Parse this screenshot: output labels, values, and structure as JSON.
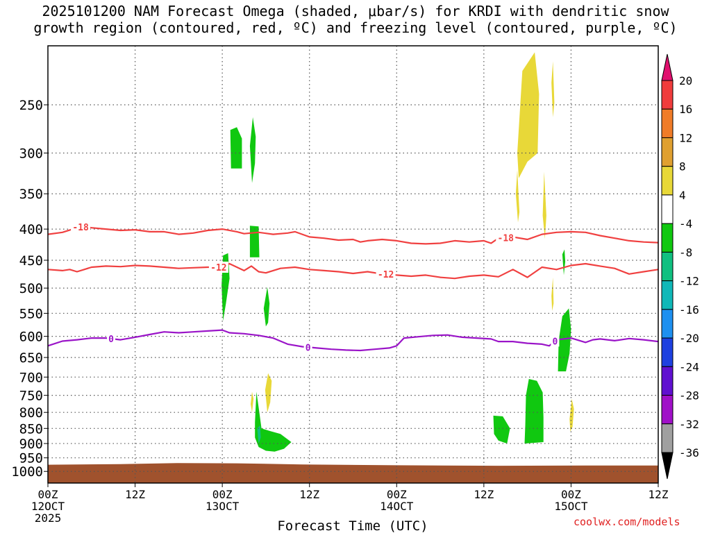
{
  "title_line1": "2025101200 NAM Forecast Omega (shaded, μbar/s) for KRDI with dendritic snow",
  "title_line2": "growth region (contoured, red, ºC) and freezing level (contoured, purple, ºC)",
  "credit": "coolwx.com/models",
  "chart_data": {
    "type": "time-height",
    "xlabel": "Forecast Time (UTC)",
    "x_range_hours": [
      0,
      84
    ],
    "y_scale": "log-pressure",
    "y_range_hPa": [
      200,
      1045
    ],
    "y_ticks": [
      250,
      300,
      350,
      400,
      450,
      500,
      550,
      600,
      650,
      700,
      750,
      800,
      850,
      900,
      950,
      1000
    ],
    "x_ticks": [
      {
        "h": 0,
        "lines": [
          "00Z",
          "12OCT",
          "2025"
        ]
      },
      {
        "h": 12,
        "lines": [
          "12Z"
        ]
      },
      {
        "h": 24,
        "lines": [
          "00Z",
          "13OCT"
        ]
      },
      {
        "h": 36,
        "lines": [
          "12Z"
        ]
      },
      {
        "h": 48,
        "lines": [
          "00Z",
          "14OCT"
        ]
      },
      {
        "h": 60,
        "lines": [
          "12Z"
        ]
      },
      {
        "h": 72,
        "lines": [
          "00Z",
          "15OCT"
        ]
      },
      {
        "h": 84,
        "lines": [
          "12Z"
        ]
      }
    ],
    "grid": true,
    "colorbar": {
      "levels": [
        20,
        16,
        12,
        8,
        4,
        -4,
        -8,
        -12,
        -16,
        -20,
        -24,
        -28,
        -32,
        -36
      ],
      "colors": [
        "#f03c3c",
        "#f07c28",
        "#e0a030",
        "#e8d838",
        "#ffffff",
        "#10c810",
        "#10c080",
        "#10b8b8",
        "#1e90f0",
        "#1e40e0",
        "#6010d0",
        "#a010c8",
        "#a0a0a0"
      ],
      "top_color": "#e0106e",
      "bottom_color": "#000000"
    },
    "contours": [
      {
        "level": -18,
        "color": "#f04040",
        "label_text": "-18",
        "label_at_h": [
          4.5,
          63
        ],
        "points": [
          [
            0,
            408
          ],
          [
            2,
            405
          ],
          [
            4,
            398
          ],
          [
            5,
            396
          ],
          [
            6,
            398
          ],
          [
            8,
            400
          ],
          [
            10,
            402
          ],
          [
            12,
            401
          ],
          [
            14,
            404
          ],
          [
            16,
            404
          ],
          [
            18,
            408
          ],
          [
            20,
            406
          ],
          [
            22,
            402
          ],
          [
            24,
            400
          ],
          [
            26,
            404
          ],
          [
            27,
            407
          ],
          [
            29,
            405
          ],
          [
            31,
            408
          ],
          [
            33,
            406
          ],
          [
            34,
            404
          ],
          [
            36,
            412
          ],
          [
            38,
            414
          ],
          [
            40,
            417
          ],
          [
            42,
            416
          ],
          [
            43,
            420
          ],
          [
            44,
            418
          ],
          [
            46,
            416
          ],
          [
            48,
            418
          ],
          [
            50,
            422
          ],
          [
            52,
            423
          ],
          [
            54,
            422
          ],
          [
            56,
            418
          ],
          [
            58,
            420
          ],
          [
            60,
            418
          ],
          [
            61,
            422
          ],
          [
            62,
            414
          ],
          [
            64,
            412
          ],
          [
            66,
            416
          ],
          [
            68,
            408
          ],
          [
            70,
            405
          ],
          [
            72,
            404
          ],
          [
            74,
            405
          ],
          [
            76,
            410
          ],
          [
            78,
            414
          ],
          [
            80,
            418
          ],
          [
            82,
            420
          ],
          [
            84,
            421
          ]
        ]
      },
      {
        "level": -12,
        "color": "#f04040",
        "label_text": "-12",
        "label_at_h": [
          23.5,
          46.5
        ],
        "points": [
          [
            0,
            466
          ],
          [
            2,
            468
          ],
          [
            3,
            466
          ],
          [
            4,
            470
          ],
          [
            5,
            466
          ],
          [
            6,
            462
          ],
          [
            8,
            460
          ],
          [
            10,
            461
          ],
          [
            12,
            459
          ],
          [
            14,
            460
          ],
          [
            16,
            462
          ],
          [
            18,
            464
          ],
          [
            20,
            463
          ],
          [
            22,
            462
          ],
          [
            24,
            462
          ],
          [
            25,
            456
          ],
          [
            27,
            468
          ],
          [
            28,
            460
          ],
          [
            29,
            470
          ],
          [
            30,
            472
          ],
          [
            32,
            464
          ],
          [
            34,
            462
          ],
          [
            36,
            466
          ],
          [
            38,
            468
          ],
          [
            40,
            470
          ],
          [
            42,
            473
          ],
          [
            44,
            470
          ],
          [
            46,
            474
          ],
          [
            48,
            476
          ],
          [
            50,
            478
          ],
          [
            52,
            476
          ],
          [
            54,
            480
          ],
          [
            56,
            482
          ],
          [
            58,
            478
          ],
          [
            60,
            476
          ],
          [
            62,
            479
          ],
          [
            64,
            466
          ],
          [
            66,
            480
          ],
          [
            68,
            462
          ],
          [
            70,
            466
          ],
          [
            72,
            459
          ],
          [
            74,
            456
          ],
          [
            76,
            460
          ],
          [
            78,
            464
          ],
          [
            80,
            474
          ],
          [
            82,
            470
          ],
          [
            84,
            466
          ]
        ]
      },
      {
        "level": 0,
        "color": "#9a14c8",
        "label_text": "0",
        "label_at_h": [
          8.7,
          35.8,
          69.8
        ],
        "points": [
          [
            0,
            622
          ],
          [
            2,
            611
          ],
          [
            4,
            608
          ],
          [
            6,
            604
          ],
          [
            8,
            604
          ],
          [
            10,
            608
          ],
          [
            12,
            602
          ],
          [
            14,
            596
          ],
          [
            16,
            590
          ],
          [
            18,
            592
          ],
          [
            20,
            590
          ],
          [
            22,
            588
          ],
          [
            24,
            586
          ],
          [
            25,
            592
          ],
          [
            27,
            594
          ],
          [
            29,
            598
          ],
          [
            31,
            604
          ],
          [
            33,
            618
          ],
          [
            35,
            624
          ],
          [
            37,
            627
          ],
          [
            39,
            630
          ],
          [
            41,
            632
          ],
          [
            43,
            633
          ],
          [
            45,
            630
          ],
          [
            47,
            627
          ],
          [
            48,
            622
          ],
          [
            49,
            604
          ],
          [
            51,
            601
          ],
          [
            53,
            598
          ],
          [
            55,
            597
          ],
          [
            57,
            602
          ],
          [
            59,
            604
          ],
          [
            61,
            606
          ],
          [
            62,
            612
          ],
          [
            64,
            612
          ],
          [
            66,
            616
          ],
          [
            68,
            618
          ],
          [
            69,
            622
          ],
          [
            70,
            608
          ],
          [
            72,
            604
          ],
          [
            74,
            614
          ],
          [
            75,
            608
          ],
          [
            76,
            606
          ],
          [
            78,
            610
          ],
          [
            80,
            605
          ],
          [
            82,
            608
          ],
          [
            84,
            612
          ]
        ]
      }
    ],
    "omega_regions": [
      {
        "level": "-8 to -4",
        "color": "#10c810",
        "polygon": [
          [
            25.1,
            275
          ],
          [
            26.0,
            272
          ],
          [
            26.7,
            284
          ],
          [
            26.7,
            318
          ],
          [
            25.2,
            318
          ]
        ]
      },
      {
        "level": "-8 to -4",
        "color": "#10c810",
        "polygon": [
          [
            27.8,
            292
          ],
          [
            28.2,
            262
          ],
          [
            28.6,
            282
          ],
          [
            28.5,
            312
          ],
          [
            28.1,
            336
          ]
        ]
      },
      {
        "level": "-8 to -4",
        "color": "#10c810",
        "polygon": [
          [
            27.8,
            395
          ],
          [
            29.0,
            396
          ],
          [
            29.1,
            445
          ],
          [
            27.8,
            445
          ]
        ]
      },
      {
        "level": "-8 to -4",
        "color": "#10c810",
        "polygon": [
          [
            23.9,
            495
          ],
          [
            24.1,
            442
          ],
          [
            24.8,
            438
          ],
          [
            25.0,
            482
          ],
          [
            24.5,
            530
          ],
          [
            24.1,
            566
          ]
        ]
      },
      {
        "level": "-8 to -4",
        "color": "#10c810",
        "polygon": [
          [
            29.7,
            540
          ],
          [
            30.2,
            498
          ],
          [
            30.5,
            530
          ],
          [
            30.3,
            570
          ],
          [
            30.0,
            578
          ]
        ]
      },
      {
        "level": "-8 to -4",
        "color": "#10c810",
        "polygon": [
          [
            28.5,
            830
          ],
          [
            28.7,
            740
          ],
          [
            29.0,
            785
          ],
          [
            29.4,
            850
          ],
          [
            30.5,
            858
          ],
          [
            32.0,
            868
          ],
          [
            33.5,
            895
          ],
          [
            32.5,
            918
          ],
          [
            31.2,
            928
          ],
          [
            30.0,
            925
          ],
          [
            29.0,
            912
          ],
          [
            28.5,
            880
          ]
        ]
      },
      {
        "level": "-8 to -4",
        "color": "#10c810",
        "polygon": [
          [
            61.3,
            810
          ],
          [
            62.6,
            812
          ],
          [
            63.6,
            850
          ],
          [
            63.2,
            900
          ],
          [
            62.0,
            890
          ],
          [
            61.4,
            868
          ]
        ]
      },
      {
        "level": "-8 to -4",
        "color": "#10c810",
        "polygon": [
          [
            65.8,
            750
          ],
          [
            66.2,
            705
          ],
          [
            67.3,
            710
          ],
          [
            68.1,
            742
          ],
          [
            68.2,
            815
          ],
          [
            68.2,
            895
          ],
          [
            65.6,
            900
          ],
          [
            65.7,
            840
          ]
        ]
      },
      {
        "level": "-8 to -4",
        "color": "#10c810",
        "polygon": [
          [
            70.3,
            610
          ],
          [
            70.8,
            556
          ],
          [
            71.7,
            540
          ],
          [
            72.0,
            585
          ],
          [
            71.8,
            640
          ],
          [
            71.3,
            685
          ],
          [
            70.2,
            685
          ]
        ]
      },
      {
        "level": "-8 to -4",
        "color": "#10c810",
        "polygon": [
          [
            70.8,
            440
          ],
          [
            71.1,
            432
          ],
          [
            71.2,
            452
          ],
          [
            71.0,
            476
          ]
        ]
      },
      {
        "level": "4 to 8",
        "color": "#e8d838",
        "polygon": [
          [
            64.6,
            300
          ],
          [
            65.3,
            220
          ],
          [
            67.0,
            205
          ],
          [
            67.6,
            240
          ],
          [
            67.4,
            300
          ],
          [
            66.0,
            310
          ],
          [
            64.8,
            330
          ]
        ]
      },
      {
        "level": "4 to 8",
        "color": "#e8d838",
        "polygon": [
          [
            69.3,
            230
          ],
          [
            69.5,
            212
          ],
          [
            69.7,
            248
          ],
          [
            69.5,
            262
          ]
        ]
      },
      {
        "level": "4 to 8",
        "color": "#e8d838",
        "polygon": [
          [
            64.4,
            350
          ],
          [
            64.6,
            320
          ],
          [
            64.9,
            375
          ],
          [
            64.7,
            390
          ]
        ]
      },
      {
        "level": "4 to 8",
        "color": "#e8d838",
        "polygon": [
          [
            68.1,
            380
          ],
          [
            68.3,
            322
          ],
          [
            68.6,
            380
          ],
          [
            68.4,
            415
          ]
        ]
      },
      {
        "level": "4 to 8",
        "color": "#e8d838",
        "polygon": [
          [
            69.3,
            515
          ],
          [
            69.5,
            480
          ],
          [
            69.6,
            530
          ],
          [
            69.4,
            545
          ]
        ]
      },
      {
        "level": "4 to 8",
        "color": "#e8d838",
        "polygon": [
          [
            71.8,
            820
          ],
          [
            72.1,
            760
          ],
          [
            72.4,
            790
          ],
          [
            72.2,
            845
          ],
          [
            71.9,
            860
          ]
        ]
      },
      {
        "level": "4 to 8",
        "color": "#e8d838",
        "polygon": [
          [
            27.9,
            775
          ],
          [
            28.1,
            740
          ],
          [
            28.3,
            760
          ],
          [
            28.1,
            800
          ]
        ]
      },
      {
        "level": "4 to 8",
        "color": "#e8d838",
        "polygon": [
          [
            29.9,
            735
          ],
          [
            30.3,
            690
          ],
          [
            30.8,
            710
          ],
          [
            30.6,
            770
          ],
          [
            30.2,
            800
          ]
        ]
      },
      {
        "level": "-12 to -8",
        "color": "#10c080",
        "polygon": [
          [
            28.8,
            850
          ],
          [
            29.2,
            840
          ],
          [
            29.3,
            880
          ],
          [
            29.0,
            900
          ]
        ]
      }
    ],
    "surface_pressure": [
      [
        0,
        975
      ],
      [
        10,
        973
      ],
      [
        18,
        969
      ],
      [
        26,
        970
      ],
      [
        35,
        974
      ],
      [
        48,
        977
      ],
      [
        62,
        979
      ],
      [
        74,
        978
      ],
      [
        84,
        978
      ]
    ],
    "ground_color": "#a0522d"
  }
}
